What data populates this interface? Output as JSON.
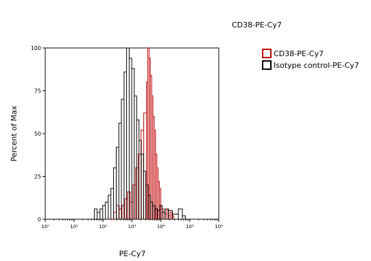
{
  "chart_data": {
    "type": "line",
    "title": "CD38-PE-Cy7",
    "xlabel": "PE-Cy7",
    "ylabel": "Percent of Max",
    "x_scale": "log",
    "xlim": [
      1,
      1000000
    ],
    "ylim": [
      0,
      100
    ],
    "x_tick_labels": [
      "10⁰",
      "10¹",
      "10²",
      "10³",
      "10⁴",
      "10⁵",
      "10⁶"
    ],
    "y_ticks": [
      0,
      25,
      50,
      75,
      100
    ],
    "grid": false,
    "legend_position": "right",
    "series": [
      {
        "name": "CD38-PE-Cy7",
        "color": "#c00000",
        "x": [
          180,
          230,
          290,
          360,
          450,
          560,
          700,
          870,
          1080,
          1340,
          1660,
          2060,
          2550,
          3160,
          3500,
          3900,
          4300,
          4800,
          5300,
          5900,
          6500,
          7200,
          8000,
          8900,
          9900,
          11000,
          12500,
          14000,
          16000,
          18500,
          21000,
          24000,
          28000
        ],
        "y": [
          0,
          4,
          8,
          6,
          8,
          12,
          16,
          10,
          20,
          30,
          38,
          52,
          62,
          80,
          100,
          94,
          84,
          72,
          60,
          52,
          38,
          30,
          22,
          18,
          8,
          6,
          4,
          3,
          6,
          2,
          4,
          2,
          0
        ]
      },
      {
        "name": "Isotype control-PE-Cy7",
        "color": "#000000",
        "x": [
          40,
          50,
          62,
          78,
          97,
          120,
          150,
          186,
          230,
          285,
          350,
          430,
          530,
          650,
          800,
          980,
          1200,
          1450,
          1750,
          2100,
          2500,
          3000,
          3600,
          4300,
          5200,
          6300,
          7600,
          9200,
          11000,
          14000,
          18000,
          25000,
          40000,
          55000,
          70000
        ],
        "y": [
          0,
          6,
          4,
          6,
          8,
          10,
          14,
          18,
          30,
          42,
          56,
          70,
          86,
          100,
          94,
          88,
          72,
          58,
          46,
          38,
          28,
          20,
          14,
          10,
          8,
          6,
          5,
          8,
          4,
          6,
          5,
          3,
          6,
          2,
          0
        ]
      }
    ]
  }
}
